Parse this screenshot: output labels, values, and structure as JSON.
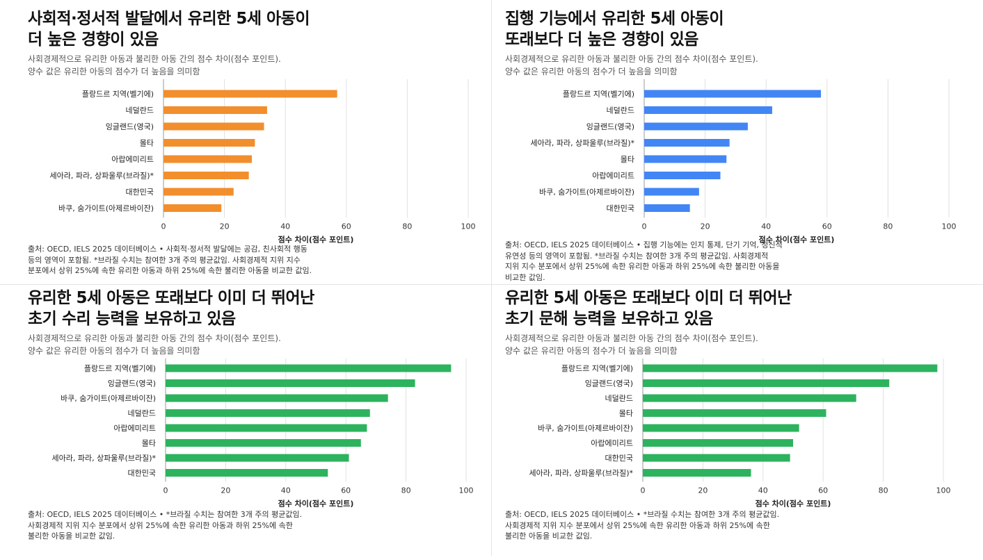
{
  "colors": {
    "orange": "#F28E2B",
    "blue": "#4285F4",
    "green": "#2DB35D",
    "grid": "#e0e0e0"
  },
  "panels": [
    {
      "title_line1": "사회적·정서적 발달에서 유리한 5세 아동이",
      "title_line2": "더 높은 경향이 있음",
      "subtitle_line1": "사회경제적으로 유리한 아동과 불리한 아동 간의 점수 차이(점수 포인트).",
      "subtitle_line2": "양수 값은 유리한 아동의 점수가 더 높음을 의미함",
      "source_line1": "출처: OECD, IELS 2025 데이터베이스 • 사회적·정서적 발달에는 공감, 친사회적 행동",
      "source_line2": "등의 영역이 포함됨. *브라질 수치는 참여한 3개 주의 평균값임. 사회경제적 지위 지수",
      "source_line3": "분포에서 상위 25%에 속한 유리한 아동과 하위 25%에 속한 불리한 아동을 비교한 값임."
    },
    {
      "title_line1": "집행 기능에서 유리한 5세 아동이",
      "title_line2": "또래보다 더 높은 경향이 있음",
      "subtitle_line1": "사회경제적으로 유리한 아동과 불리한 아동 간의 점수 차이(점수 포인트).",
      "subtitle_line2": "양수 값은 유리한 아동의 점수가 더 높음을 의미함",
      "source_line1": "출처: OECD, IELS 2025 데이터베이스 • 집행 기능에는 인지 통제, 단기 기억, 정신적",
      "source_line2": "유연성 등의 영역이 포함됨. *브라질 수치는 참여한 3개 주의 평균값임. 사회경제적",
      "source_line3": "지위 지수 분포에서 상위 25%에 속한 유리한 아동과 하위 25%에 속한 불리한 아동을",
      "source_line4": "비교한 값임."
    },
    {
      "title_line1": "유리한 5세 아동은 또래보다 이미 더 뛰어난",
      "title_line2": "초기 수리 능력을 보유하고 있음",
      "subtitle_line1": "사회경제적으로 유리한 아동과 불리한 아동 간의 점수 차이(점수 포인트).",
      "subtitle_line2": "양수 값은 유리한 아동의 점수가 더 높음을 의미함",
      "source_line1": "출처: OECD, IELS 2025 데이터베이스 • *브라질 수치는 참여한 3개 주의 평균값임.",
      "source_line2": "사회경제적 지위 지수 분포에서 상위 25%에 속한 유리한 아동과 하위 25%에 속한",
      "source_line3": "불리한 아동을 비교한 값임."
    },
    {
      "title_line1": "유리한 5세 아동은 또래보다 이미 더 뛰어난",
      "title_line2": "초기 문해 능력을 보유하고 있음",
      "subtitle_line1": "사회경제적으로 유리한 아동과 불리한 아동 간의 점수 차이(점수 포인트).",
      "subtitle_line2": "양수 값은 유리한 아동의 점수가 더 높음을 의미함",
      "source_line1": "출처: OECD, IELS 2025 데이터베이스 • *브라질 수치는 참여한 3개 주의 평균값임.",
      "source_line2": "사회경제적 지위 지수 분포에서 상위 25%에 속한 유리한 아동과 하위 25%에 속한",
      "source_line3": "불리한 아동을 비교한 값임."
    }
  ],
  "chart_data": [
    {
      "type": "bar",
      "orientation": "horizontal",
      "color": "#F28E2B",
      "categories": [
        "플랑드르 지역(벨기에)",
        "네덜란드",
        "잉글랜드(영국)",
        "몰타",
        "아랍에미리트",
        "세아라, 파라, 상파울루(브라질)*",
        "대한민국",
        "바쿠, 숨가이트(아제르바이잔)"
      ],
      "values": [
        57,
        34,
        33,
        30,
        29,
        28,
        23,
        19
      ],
      "xlabel": "점수 차이(점수 포인트)",
      "xlim": [
        0,
        100
      ],
      "xticks": [
        0,
        20,
        40,
        60,
        80,
        100
      ],
      "grid": true
    },
    {
      "type": "bar",
      "orientation": "horizontal",
      "color": "#4285F4",
      "categories": [
        "플랑드르 지역(벨기에)",
        "네덜란드",
        "잉글랜드(영국)",
        "세아라, 파라, 상파울루(브라질)*",
        "몰타",
        "아랍에미리트",
        "바쿠, 숨가이트(아제르바이잔)",
        "대한민국"
      ],
      "values": [
        58,
        42,
        34,
        28,
        27,
        25,
        18,
        15
      ],
      "xlabel": "점수 차이(점수 포인트)",
      "xlim": [
        0,
        100
      ],
      "xticks": [
        0,
        20,
        40,
        60,
        80,
        100
      ],
      "grid": true
    },
    {
      "type": "bar",
      "orientation": "horizontal",
      "color": "#2DB35D",
      "categories": [
        "플랑드르 지역(벨기에)",
        "잉글랜드(영국)",
        "바쿠, 숨가이트(아제르바이잔)",
        "네덜란드",
        "아랍에미리트",
        "몰타",
        "세아라, 파라, 상파울루(브라질)*",
        "대한민국"
      ],
      "values": [
        95,
        83,
        74,
        68,
        67,
        65,
        61,
        54
      ],
      "xlabel": "점수 차이(점수 포인트)",
      "xlim": [
        0,
        100
      ],
      "xticks": [
        0,
        20,
        40,
        60,
        80,
        100
      ],
      "grid": true
    },
    {
      "type": "bar",
      "orientation": "horizontal",
      "color": "#2DB35D",
      "categories": [
        "플랑드르 지역(벨기에)",
        "잉글랜드(영국)",
        "네덜란드",
        "몰타",
        "바쿠, 숨가이트(아제르바이잔)",
        "아랍에미리트",
        "대한민국",
        "세아라, 파라, 상파울루(브라질)*"
      ],
      "values": [
        98,
        82,
        71,
        61,
        52,
        50,
        49,
        36
      ],
      "xlabel": "점수 차이(점수 포인트)",
      "xlim": [
        0,
        100
      ],
      "xticks": [
        0,
        20,
        40,
        60,
        80,
        100
      ],
      "grid": true
    }
  ]
}
